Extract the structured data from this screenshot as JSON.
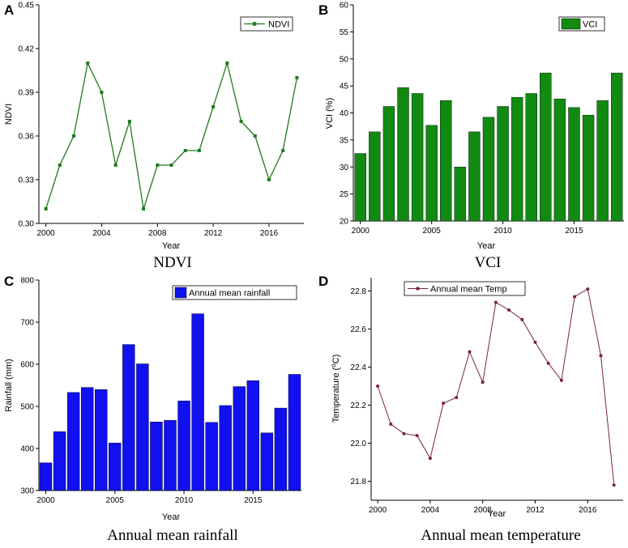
{
  "figure": {
    "colors": {
      "ndvi": "#1f7a1f",
      "vci": "#118a11",
      "rainfall": "#1010f0",
      "temp": "#7a1f4a"
    }
  },
  "chart_data": [
    {
      "panel": "A",
      "type": "line",
      "caption": "NDVI",
      "legend": "NDVI",
      "xlabel": "Year",
      "ylabel": "NDVI",
      "x": [
        2000,
        2001,
        2002,
        2003,
        2004,
        2005,
        2006,
        2007,
        2008,
        2009,
        2010,
        2011,
        2012,
        2013,
        2014,
        2015,
        2016,
        2017,
        2018
      ],
      "values": [
        0.31,
        0.34,
        0.36,
        0.41,
        0.39,
        0.34,
        0.37,
        0.31,
        0.34,
        0.34,
        0.35,
        0.35,
        0.38,
        0.41,
        0.37,
        0.36,
        0.33,
        0.35,
        0.4
      ],
      "xlim": [
        1999.5,
        2018.5
      ],
      "ylim": [
        0.3,
        0.45
      ],
      "xticks": [
        2000,
        2004,
        2008,
        2012,
        2016
      ],
      "yticks": [
        0.3,
        0.33,
        0.36,
        0.39,
        0.42,
        0.45
      ],
      "ytick_labels": [
        "0.30",
        "0.33",
        "0.36",
        "0.39",
        "0.42",
        "0.45"
      ]
    },
    {
      "panel": "B",
      "type": "bar",
      "caption": "VCI",
      "legend": "VCI",
      "xlabel": "Year",
      "ylabel": "VCI (%)",
      "x": [
        2000,
        2001,
        2002,
        2003,
        2004,
        2005,
        2006,
        2007,
        2008,
        2009,
        2010,
        2011,
        2012,
        2013,
        2014,
        2015,
        2016,
        2017,
        2018
      ],
      "values": [
        32.5,
        36.5,
        41.2,
        44.7,
        43.6,
        37.7,
        42.3,
        30.0,
        36.5,
        39.2,
        41.2,
        42.9,
        43.6,
        47.4,
        42.6,
        41.0,
        39.6,
        42.3,
        47.4
      ],
      "xlim": [
        1999.5,
        2018.5
      ],
      "ylim": [
        20,
        60
      ],
      "xticks": [
        2000,
        2005,
        2010,
        2015
      ],
      "yticks": [
        20,
        25,
        30,
        35,
        40,
        45,
        50,
        55,
        60
      ],
      "ytick_labels": [
        "20",
        "25",
        "30",
        "35",
        "40",
        "45",
        "50",
        "55",
        "60"
      ]
    },
    {
      "panel": "C",
      "type": "bar",
      "caption": "Annual mean rainfall",
      "legend": "Annual mean rainfall",
      "xlabel": "Year",
      "ylabel": "Rainfall (mm)",
      "x": [
        2000,
        2001,
        2002,
        2003,
        2004,
        2005,
        2006,
        2007,
        2008,
        2009,
        2010,
        2011,
        2012,
        2013,
        2014,
        2015,
        2016,
        2017,
        2018
      ],
      "values": [
        366,
        440,
        533,
        545,
        540,
        413,
        647,
        601,
        463,
        467,
        513,
        720,
        462,
        502,
        547,
        561,
        437,
        496,
        576
      ],
      "xlim": [
        1999.5,
        2018.5
      ],
      "ylim": [
        300,
        800
      ],
      "xticks": [
        2000,
        2005,
        2010,
        2015
      ],
      "yticks": [
        300,
        400,
        500,
        600,
        700,
        800
      ],
      "ytick_labels": [
        "300",
        "400",
        "500",
        "600",
        "700",
        "800"
      ]
    },
    {
      "panel": "D",
      "type": "line",
      "caption": "Annual mean temperature",
      "legend": "Annual mean Temp",
      "xlabel": "Year",
      "ylabel_main": "Temperature (",
      "ylabel_sup": "o",
      "ylabel_tail": "C)",
      "x": [
        2000,
        2001,
        2002,
        2003,
        2004,
        2005,
        2006,
        2007,
        2008,
        2009,
        2010,
        2011,
        2012,
        2013,
        2014,
        2015,
        2016,
        2017,
        2018
      ],
      "values": [
        22.3,
        22.1,
        22.05,
        22.04,
        21.92,
        22.21,
        22.24,
        22.48,
        22.32,
        22.74,
        22.7,
        22.65,
        22.53,
        22.42,
        22.33,
        22.77,
        22.81,
        22.46,
        21.78
      ],
      "xlim": [
        1999.5,
        2018.7
      ],
      "ylim": [
        21.7,
        22.87
      ],
      "xticks": [
        2000,
        2004,
        2008,
        2012,
        2016
      ],
      "yticks": [
        21.8,
        22.0,
        22.2,
        22.4,
        22.6,
        22.8
      ],
      "ytick_labels": [
        "21.8",
        "22.0",
        "22.2",
        "22.4",
        "22.6",
        "22.8"
      ]
    }
  ]
}
